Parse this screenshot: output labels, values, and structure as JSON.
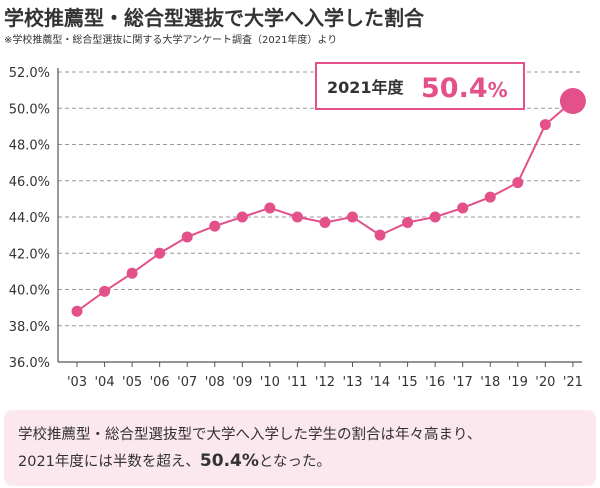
{
  "header": {
    "title": "学校推薦型・総合型選抜で大学へ入学した割合",
    "note": "※学校推薦型・総合型選抜に関する大学アンケート調査（2021年度）より"
  },
  "callout": {
    "label": "2021年度",
    "value": "50.4",
    "unit": "%"
  },
  "summary": {
    "line1": "学校推薦型・総合型選抜型で大学へ入学した学生の割合は年々高まり、",
    "line2_before": "2021年度には半数を超え、",
    "line2_value": "50.4%",
    "line2_after": "となった。"
  },
  "colors": {
    "series": "#e3508a",
    "callout_border": "#e3508a",
    "summary_bg": "#fbe7ee",
    "grid": "#999999"
  },
  "chart_data": {
    "type": "line",
    "categories": [
      "'03",
      "'04",
      "'05",
      "'06",
      "'07",
      "'08",
      "'09",
      "'10",
      "'11",
      "'12",
      "'13",
      "'14",
      "'15",
      "'16",
      "'17",
      "'18",
      "'19",
      "'20",
      "'21"
    ],
    "series": [
      {
        "values": [
          38.8,
          39.9,
          40.9,
          42.0,
          42.9,
          43.5,
          44.0,
          44.5,
          44.0,
          43.7,
          44.0,
          43.0,
          43.7,
          44.0,
          44.5,
          45.1,
          45.9,
          49.1,
          50.4
        ]
      }
    ],
    "y_ticks": [
      "36.0%",
      "38.0%",
      "40.0%",
      "42.0%",
      "44.0%",
      "46.0%",
      "48.0%",
      "50.0%",
      "52.0%"
    ],
    "ylim": [
      36.0,
      52.0
    ],
    "grid": "horizontal dashed",
    "highlight": "last point"
  }
}
